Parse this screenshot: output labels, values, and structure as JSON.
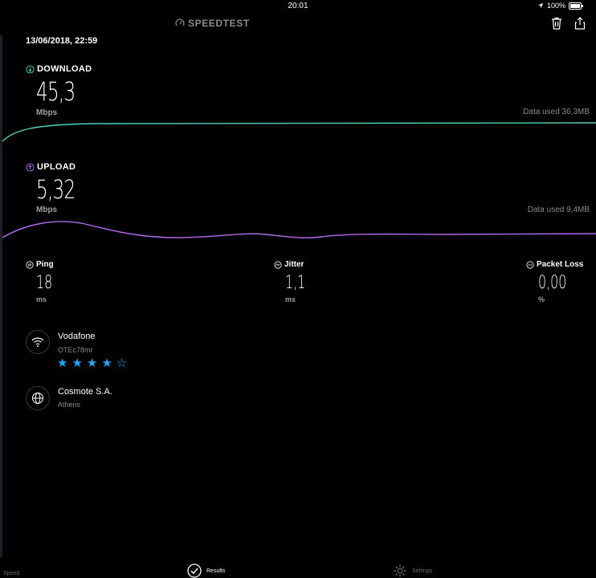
{
  "status_bar": {
    "time": "20:01",
    "battery": "100%"
  },
  "header": {
    "title": "SPEEDTEST"
  },
  "result": {
    "date": "13/06/2018, 22:59",
    "download": {
      "label": "DOWNLOAD",
      "value": "45,3",
      "unit": "Mbps",
      "data_used": "Data used 36,3MB"
    },
    "upload": {
      "label": "UPLOAD",
      "value": "5,32",
      "unit": "Mbps",
      "data_used": "Data used 9,4MB"
    },
    "ping": {
      "label": "Ping",
      "value": "18",
      "unit": "ms"
    },
    "jitter": {
      "label": "Jitter",
      "value": "1,1",
      "unit": "ms"
    },
    "packet_loss": {
      "label": "Packet Loss",
      "value": "0,00",
      "unit": "%"
    }
  },
  "network": {
    "wifi": {
      "name": "Vodafone",
      "ssid": "OTEc78mr",
      "rating": 4,
      "rating_max": 5
    },
    "server": {
      "name": "Cosmote S.A.",
      "location": "Athens"
    }
  },
  "tabs": [
    {
      "label": "Speed",
      "icon": "speedometer-icon"
    },
    {
      "label": "Results",
      "icon": "checkmark-circle-icon",
      "active": true
    },
    {
      "label": "Settings",
      "icon": "gear-icon"
    }
  ],
  "colors": {
    "download": "#4fd1b8",
    "upload": "#b06cf0",
    "accent": "#1ea7ff"
  }
}
